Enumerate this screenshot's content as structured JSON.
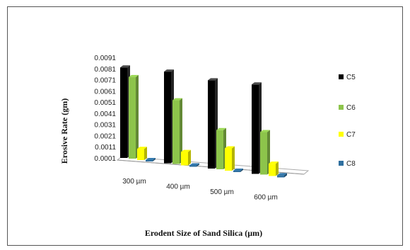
{
  "chart_data": {
    "type": "bar",
    "title": "",
    "xlabel": "Erodent Size of Sand Silica  (µm)",
    "ylabel": "Erosive Rate (gm)",
    "categories": [
      "300 µm",
      "400 µm",
      "500 µm",
      "600 µm"
    ],
    "series": [
      {
        "name": "C5",
        "color": "#000000",
        "values": [
          0.0082,
          0.0083,
          0.008,
          0.0081
        ]
      },
      {
        "name": "C6",
        "color": "#8dc44b",
        "values": [
          0.0074,
          0.0058,
          0.0036,
          0.0039
        ]
      },
      {
        "name": "C7",
        "color": "#ffff00",
        "values": [
          0.0011,
          0.0013,
          0.0021,
          0.0012
        ]
      },
      {
        "name": "C8",
        "color": "#2f6f9f",
        "values": [
          0.0002,
          0.0002,
          0.0002,
          0.0003
        ]
      }
    ],
    "yticks": [
      "0.0001",
      "0.0011",
      "0.0021",
      "0.0031",
      "0.0041",
      "0.0051",
      "0.0061",
      "0.0071",
      "0.0081",
      "0.0091"
    ],
    "ylim": [
      0.0001,
      0.0091
    ],
    "grid": false,
    "legend_position": "right"
  }
}
